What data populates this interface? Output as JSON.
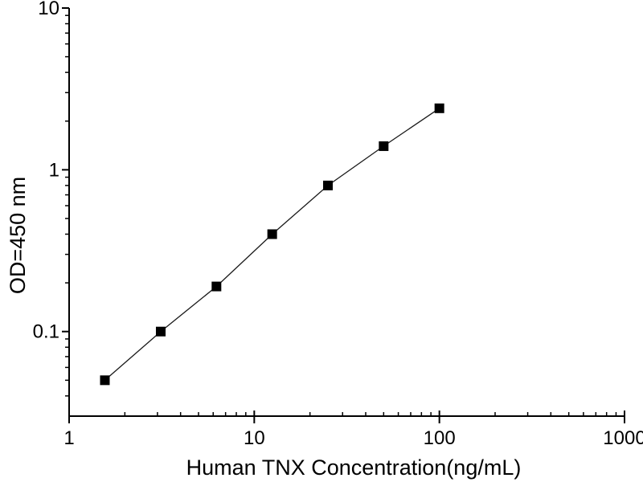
{
  "chart_data": {
    "type": "line",
    "title": "",
    "xlabel": "Human TNX Concentration(ng/mL)",
    "ylabel": "OD=450 nm",
    "x_scale": "log",
    "y_scale": "log",
    "xlim": [
      1,
      1000
    ],
    "ylim": [
      0.03,
      10
    ],
    "grid": false,
    "legend": "none",
    "marker": "filled-square",
    "colors": {
      "background": "#ffffff",
      "axis": "#000000",
      "line": "#1a1a1a",
      "marker": "#000000",
      "text": "#000000"
    },
    "x_major_ticks": [
      {
        "value": 1,
        "label": "1"
      },
      {
        "value": 10,
        "label": "10"
      },
      {
        "value": 100,
        "label": "100"
      },
      {
        "value": 1000,
        "label": "1000"
      }
    ],
    "y_major_ticks": [
      {
        "value": 0.1,
        "label": "0.1"
      },
      {
        "value": 1,
        "label": "1"
      },
      {
        "value": 10,
        "label": "10"
      }
    ],
    "minor_tick_style": "log-2-to-9",
    "series": [
      {
        "x": [
          1.56,
          3.125,
          6.25,
          12.5,
          25,
          50,
          100
        ],
        "y": [
          0.05,
          0.1,
          0.19,
          0.4,
          0.8,
          1.4,
          2.4
        ]
      }
    ]
  }
}
